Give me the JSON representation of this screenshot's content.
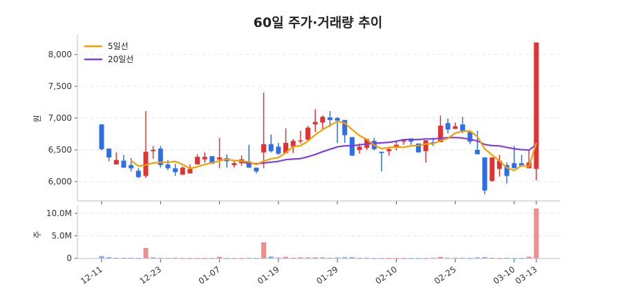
{
  "chart_data": {
    "type": "candlestick",
    "title": "60일 주가·거래량 추이",
    "price_axis": {
      "label": "원",
      "ylim": [
        5800,
        8200
      ],
      "ticks": [
        6000,
        6500,
        7000,
        7500,
        8000
      ],
      "tick_labels": [
        "6,000",
        "6,500",
        "7,000",
        "7,500",
        "8,000"
      ]
    },
    "volume_axis": {
      "label": "주",
      "ylim": [
        0,
        11500000
      ],
      "ticks": [
        0,
        5000000,
        10000000
      ],
      "tick_labels": [
        "0",
        "5.0M",
        "10.0M"
      ]
    },
    "x_ticks": [
      {
        "index": 0,
        "label": "12-11"
      },
      {
        "index": 8,
        "label": "12-23"
      },
      {
        "index": 16,
        "label": "01-07"
      },
      {
        "index": 24,
        "label": "01-19"
      },
      {
        "index": 32,
        "label": "01-29"
      },
      {
        "index": 40,
        "label": "02-10"
      },
      {
        "index": 48,
        "label": "02-25"
      },
      {
        "index": 56,
        "label": "03-10"
      },
      {
        "index": 59,
        "label": "03-13"
      }
    ],
    "legend": {
      "position": "top-left",
      "items": [
        {
          "name": "5일선",
          "color": "#f59f00"
        },
        {
          "name": "20일선",
          "color": "#7b3fe4"
        }
      ]
    },
    "colors": {
      "up": "#e03434",
      "down": "#2f6fe6",
      "ma5": "#f59f00",
      "ma20": "#7b3fe4"
    },
    "ohlc": [
      [
        6900,
        6900,
        6490,
        6510
      ],
      [
        6520,
        6520,
        6320,
        6380
      ],
      [
        6270,
        6460,
        6270,
        6340
      ],
      [
        6330,
        6420,
        6220,
        6220
      ],
      [
        6260,
        6370,
        6160,
        6210
      ],
      [
        6170,
        6210,
        6060,
        6070
      ],
      [
        6090,
        7110,
        6060,
        6470
      ],
      [
        6480,
        6560,
        6360,
        6500
      ],
      [
        6520,
        6560,
        6220,
        6260
      ],
      [
        6270,
        6340,
        6180,
        6210
      ],
      [
        6210,
        6280,
        6090,
        6150
      ],
      [
        6110,
        6240,
        6110,
        6220
      ],
      [
        6130,
        6270,
        6130,
        6200
      ],
      [
        6270,
        6430,
        6270,
        6390
      ],
      [
        6350,
        6460,
        6300,
        6390
      ],
      [
        6400,
        6400,
        6280,
        6280
      ],
      [
        6350,
        6690,
        6210,
        6380
      ],
      [
        6370,
        6430,
        6220,
        6320
      ],
      [
        6260,
        6320,
        6220,
        6290
      ],
      [
        6290,
        6410,
        6250,
        6350
      ],
      [
        6320,
        6580,
        6220,
        6220
      ],
      [
        6220,
        6220,
        6130,
        6160
      ],
      [
        6460,
        7400,
        6210,
        6590
      ],
      [
        6590,
        6740,
        6460,
        6480
      ],
      [
        6550,
        6610,
        6420,
        6440
      ],
      [
        6450,
        6840,
        6450,
        6610
      ],
      [
        6550,
        6670,
        6450,
        6640
      ],
      [
        6640,
        6800,
        6600,
        6650
      ],
      [
        6660,
        6880,
        6650,
        6850
      ],
      [
        6900,
        7140,
        6780,
        6940
      ],
      [
        6930,
        7040,
        6830,
        7020
      ],
      [
        7010,
        7110,
        6860,
        6970
      ],
      [
        7000,
        7020,
        6610,
        6960
      ],
      [
        6970,
        6970,
        6610,
        6730
      ],
      [
        6700,
        6700,
        6400,
        6410
      ],
      [
        6500,
        6600,
        6440,
        6550
      ],
      [
        6530,
        6680,
        6500,
        6670
      ],
      [
        6640,
        6690,
        6490,
        6510
      ],
      [
        6470,
        6470,
        6160,
        6450
      ],
      [
        6480,
        6530,
        6410,
        6510
      ],
      [
        6550,
        6630,
        6490,
        6580
      ],
      [
        6630,
        6650,
        6580,
        6650
      ],
      [
        6680,
        6680,
        6580,
        6630
      ],
      [
        6600,
        6600,
        6460,
        6460
      ],
      [
        6480,
        6650,
        6300,
        6650
      ],
      [
        6620,
        6690,
        6560,
        6600
      ],
      [
        6620,
        7040,
        6620,
        6880
      ],
      [
        6920,
        6990,
        6760,
        6820
      ],
      [
        6830,
        6930,
        6830,
        6870
      ],
      [
        6900,
        7020,
        6760,
        6790
      ],
      [
        6780,
        6780,
        6590,
        6630
      ],
      [
        6500,
        6800,
        6430,
        6430
      ],
      [
        6380,
        6380,
        5800,
        5860
      ],
      [
        6010,
        6380,
        6000,
        6380
      ],
      [
        6200,
        6420,
        6080,
        6330
      ],
      [
        6260,
        6300,
        5970,
        6090
      ],
      [
        6290,
        6560,
        6210,
        6210
      ],
      [
        6290,
        6420,
        6250,
        6250
      ],
      [
        6210,
        6500,
        6210,
        6300
      ],
      [
        6200,
        8190,
        6020,
        8190
      ]
    ],
    "volume": [
      500000,
      250000,
      100000,
      100000,
      100000,
      30000,
      2300000,
      200000,
      100000,
      30000,
      100000,
      30000,
      30000,
      30000,
      30000,
      30000,
      300000,
      30000,
      30000,
      30000,
      100000,
      30000,
      3550000,
      400000,
      150000,
      300000,
      100000,
      200000,
      200000,
      200000,
      200000,
      100000,
      200000,
      250000,
      250000,
      100000,
      100000,
      30000,
      30000,
      50000,
      30000,
      30000,
      30000,
      30000,
      30000,
      100000,
      300000,
      100000,
      100000,
      100000,
      30000,
      200000,
      250000,
      100000,
      30000,
      100000,
      30000,
      30000,
      350000,
      11100000
    ]
  }
}
